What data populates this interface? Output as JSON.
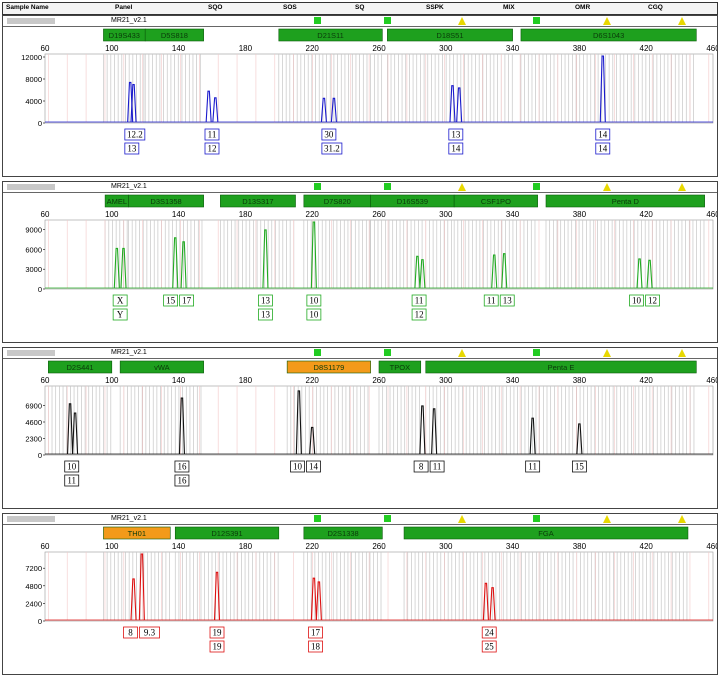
{
  "header": {
    "sample_name": "Sample Name",
    "panel": "Panel",
    "columns": [
      "SQO",
      "SOS",
      "SQ",
      "SSPK",
      "MIX",
      "OMR",
      "CGQ"
    ]
  },
  "panels": [
    {
      "kit": "MR21_v2.1",
      "color": "#1a1acc",
      "ymax": 12000,
      "yticks": [
        "12000",
        "8000",
        "4000",
        "0"
      ],
      "xticks": [
        "60",
        "100",
        "140",
        "180",
        "220",
        "260",
        "300",
        "340",
        "380",
        "420",
        "460"
      ],
      "loci": [
        {
          "name": "D19S433",
          "start": 95,
          "end": 120,
          "color": "green"
        },
        {
          "name": "D5S818",
          "start": 120,
          "end": 155,
          "color": "green"
        },
        {
          "name": "D21S11",
          "start": 200,
          "end": 262,
          "color": "green"
        },
        {
          "name": "D18S51",
          "start": 265,
          "end": 340,
          "color": "green"
        },
        {
          "name": "D6S1043",
          "start": 345,
          "end": 450,
          "color": "green"
        }
      ],
      "peaks": [
        {
          "bp": 111,
          "height": 7200,
          "label": "12.2"
        },
        {
          "bp": 113,
          "height": 6800,
          "label": "13"
        },
        {
          "bp": 158,
          "height": 5600,
          "label": "11"
        },
        {
          "bp": 162,
          "height": 4400,
          "label": "12"
        },
        {
          "bp": 227,
          "height": 4300,
          "label": "30"
        },
        {
          "bp": 233,
          "height": 4300,
          "label": "31.2"
        },
        {
          "bp": 304,
          "height": 6600,
          "label": "13"
        },
        {
          "bp": 308,
          "height": 6200,
          "label": "14"
        },
        {
          "bp": 394,
          "height": 12000,
          "label": "14"
        }
      ],
      "labels": [
        {
          "rows": [
            [
              "12.2"
            ],
            [
              "13"
            ]
          ],
          "bp": 112
        },
        {
          "rows": [
            [
              "11"
            ],
            [
              "12"
            ]
          ],
          "bp": 160
        },
        {
          "rows": [
            [
              "30"
            ],
            [
              "31.2"
            ]
          ],
          "bp": 230
        },
        {
          "rows": [
            [
              "13"
            ],
            [
              "14"
            ]
          ],
          "bp": 306
        },
        {
          "rows": [
            [
              "14"
            ],
            [
              "14"
            ]
          ],
          "bp": 394
        }
      ]
    },
    {
      "kit": "MR21_v2.1",
      "color": "#22aa22",
      "ymax": 10000,
      "yticks": [
        "9000",
        "6000",
        "3000",
        "0"
      ],
      "xticks": [
        "60",
        "100",
        "140",
        "180",
        "220",
        "260",
        "300",
        "340",
        "380",
        "420",
        "460"
      ],
      "loci": [
        {
          "name": "AMEL",
          "start": 96,
          "end": 110,
          "color": "green"
        },
        {
          "name": "D3S1358",
          "start": 110,
          "end": 155,
          "color": "green"
        },
        {
          "name": "D13S317",
          "start": 165,
          "end": 210,
          "color": "green"
        },
        {
          "name": "D7S820",
          "start": 215,
          "end": 255,
          "color": "green"
        },
        {
          "name": "D16S539",
          "start": 255,
          "end": 305,
          "color": "green"
        },
        {
          "name": "CSF1PO",
          "start": 305,
          "end": 355,
          "color": "green"
        },
        {
          "name": "Penta D",
          "start": 360,
          "end": 455,
          "color": "green"
        }
      ],
      "peaks": [
        {
          "bp": 103,
          "height": 6000,
          "label": "X"
        },
        {
          "bp": 107,
          "height": 6000,
          "label": "Y"
        },
        {
          "bp": 138,
          "height": 7600,
          "label": "15"
        },
        {
          "bp": 143,
          "height": 7000,
          "label": "17"
        },
        {
          "bp": 192,
          "height": 8800,
          "label": "13"
        },
        {
          "bp": 221,
          "height": 10000,
          "label": "10"
        },
        {
          "bp": 283,
          "height": 4800,
          "label": "11"
        },
        {
          "bp": 286,
          "height": 4300,
          "label": "12"
        },
        {
          "bp": 329,
          "height": 5000,
          "label": "11"
        },
        {
          "bp": 335,
          "height": 5200,
          "label": "13"
        },
        {
          "bp": 416,
          "height": 4400,
          "label": "10"
        },
        {
          "bp": 422,
          "height": 4200,
          "label": "12"
        }
      ],
      "labels": [
        {
          "rows": [
            [
              "X"
            ],
            [
              "Y"
            ]
          ],
          "bp": 105
        },
        {
          "rows": [
            [
              "15",
              "17"
            ]
          ],
          "bp": 140
        },
        {
          "rows": [
            [
              "13"
            ],
            [
              "13"
            ]
          ],
          "bp": 192
        },
        {
          "rows": [
            [
              "10"
            ],
            [
              "10"
            ]
          ],
          "bp": 221
        },
        {
          "rows": [
            [
              "11"
            ],
            [
              "12"
            ]
          ],
          "bp": 284
        },
        {
          "rows": [
            [
              "11",
              "13"
            ]
          ],
          "bp": 332
        },
        {
          "rows": [
            [
              "10",
              "12"
            ]
          ],
          "bp": 419
        }
      ]
    },
    {
      "kit": "MR21_v2.1",
      "color": "#111111",
      "ymax": 9200,
      "yticks": [
        "6900",
        "4600",
        "2300",
        "0"
      ],
      "xticks": [
        "60",
        "100",
        "140",
        "180",
        "220",
        "260",
        "300",
        "340",
        "380",
        "420",
        "460"
      ],
      "loci": [
        {
          "name": "D2S441",
          "start": 62,
          "end": 100,
          "color": "green"
        },
        {
          "name": "vWA",
          "start": 105,
          "end": 155,
          "color": "green"
        },
        {
          "name": "D8S1179",
          "start": 205,
          "end": 255,
          "color": "orange"
        },
        {
          "name": "TPOX",
          "start": 260,
          "end": 285,
          "color": "green"
        },
        {
          "name": "Penta E",
          "start": 288,
          "end": 450,
          "color": "green"
        }
      ],
      "peaks": [
        {
          "bp": 75,
          "height": 7000,
          "label": "10"
        },
        {
          "bp": 78,
          "height": 5700,
          "label": "11"
        },
        {
          "bp": 142,
          "height": 7800,
          "label": "16"
        },
        {
          "bp": 212,
          "height": 8800,
          "label": "10"
        },
        {
          "bp": 220,
          "height": 3700,
          "label": "14"
        },
        {
          "bp": 286,
          "height": 6700,
          "label": "8"
        },
        {
          "bp": 293,
          "height": 6300,
          "label": "11"
        },
        {
          "bp": 352,
          "height": 5000,
          "label": "11"
        },
        {
          "bp": 380,
          "height": 4200,
          "label": "15"
        }
      ],
      "labels": [
        {
          "rows": [
            [
              "10"
            ],
            [
              "11"
            ]
          ],
          "bp": 76
        },
        {
          "rows": [
            [
              "16"
            ],
            [
              "16"
            ]
          ],
          "bp": 142
        },
        {
          "rows": [
            [
              "10",
              "14"
            ]
          ],
          "bp": 216
        },
        {
          "rows": [
            [
              "8",
              "11"
            ]
          ],
          "bp": 290
        },
        {
          "rows": [
            [
              "11"
            ]
          ],
          "bp": 352
        },
        {
          "rows": [
            [
              "15"
            ]
          ],
          "bp": 380
        }
      ]
    },
    {
      "kit": "MR21_v2.1",
      "color": "#dd1111",
      "ymax": 9000,
      "yticks": [
        "7200",
        "4800",
        "2400",
        "0"
      ],
      "xticks": [
        "60",
        "100",
        "140",
        "180",
        "220",
        "260",
        "300",
        "340",
        "380",
        "420",
        "460"
      ],
      "loci": [
        {
          "name": "TH01",
          "start": 95,
          "end": 135,
          "color": "orange"
        },
        {
          "name": "D12S391",
          "start": 138,
          "end": 200,
          "color": "green"
        },
        {
          "name": "D2S1338",
          "start": 215,
          "end": 262,
          "color": "green"
        },
        {
          "name": "FGA",
          "start": 275,
          "end": 445,
          "color": "green"
        }
      ],
      "peaks": [
        {
          "bp": 113,
          "height": 5600,
          "label": "8"
        },
        {
          "bp": 118,
          "height": 9000,
          "label": "9.3"
        },
        {
          "bp": 163,
          "height": 6500,
          "label": "19"
        },
        {
          "bp": 221,
          "height": 5700,
          "label": "17"
        },
        {
          "bp": 224,
          "height": 5200,
          "label": "18"
        },
        {
          "bp": 324,
          "height": 5000,
          "label": "24"
        },
        {
          "bp": 328,
          "height": 4400,
          "label": "25"
        }
      ],
      "labels": [
        {
          "rows": [
            [
              "8",
              "9.3"
            ]
          ],
          "bp": 116
        },
        {
          "rows": [
            [
              "19"
            ],
            [
              "19"
            ]
          ],
          "bp": 163
        },
        {
          "rows": [
            [
              "17"
            ],
            [
              "18"
            ]
          ],
          "bp": 222
        },
        {
          "rows": [
            [
              "24"
            ],
            [
              "25"
            ]
          ],
          "bp": 326
        }
      ]
    }
  ],
  "chart_data": {
    "type": "line",
    "x_range": [
      60,
      460
    ],
    "series": [
      {
        "name": "",
        "x": [
          111,
          113,
          158,
          162,
          227,
          233,
          304,
          308,
          394
        ],
        "values": [
          7200,
          6800,
          5600,
          4400,
          4300,
          4300,
          6600,
          6200,
          12000
        ]
      },
      {
        "name": "",
        "x": [
          103,
          107,
          138,
          143,
          192,
          221,
          283,
          286,
          329,
          335,
          416,
          422
        ],
        "values": [
          6000,
          6000,
          7600,
          7000,
          8800,
          10000,
          4800,
          4300,
          5000,
          5200,
          4400,
          4200
        ]
      },
      {
        "name": "",
        "x": [
          75,
          78,
          142,
          212,
          220,
          286,
          293,
          352,
          380
        ],
        "values": [
          7000,
          5700,
          7800,
          8800,
          3700,
          6700,
          6300,
          5000,
          4200
        ]
      },
      {
        "name": "",
        "x": [
          113,
          118,
          163,
          221,
          224,
          324,
          328
        ],
        "values": [
          5600,
          9000,
          6500,
          5700,
          5200,
          5000,
          4400
        ]
      }
    ]
  }
}
